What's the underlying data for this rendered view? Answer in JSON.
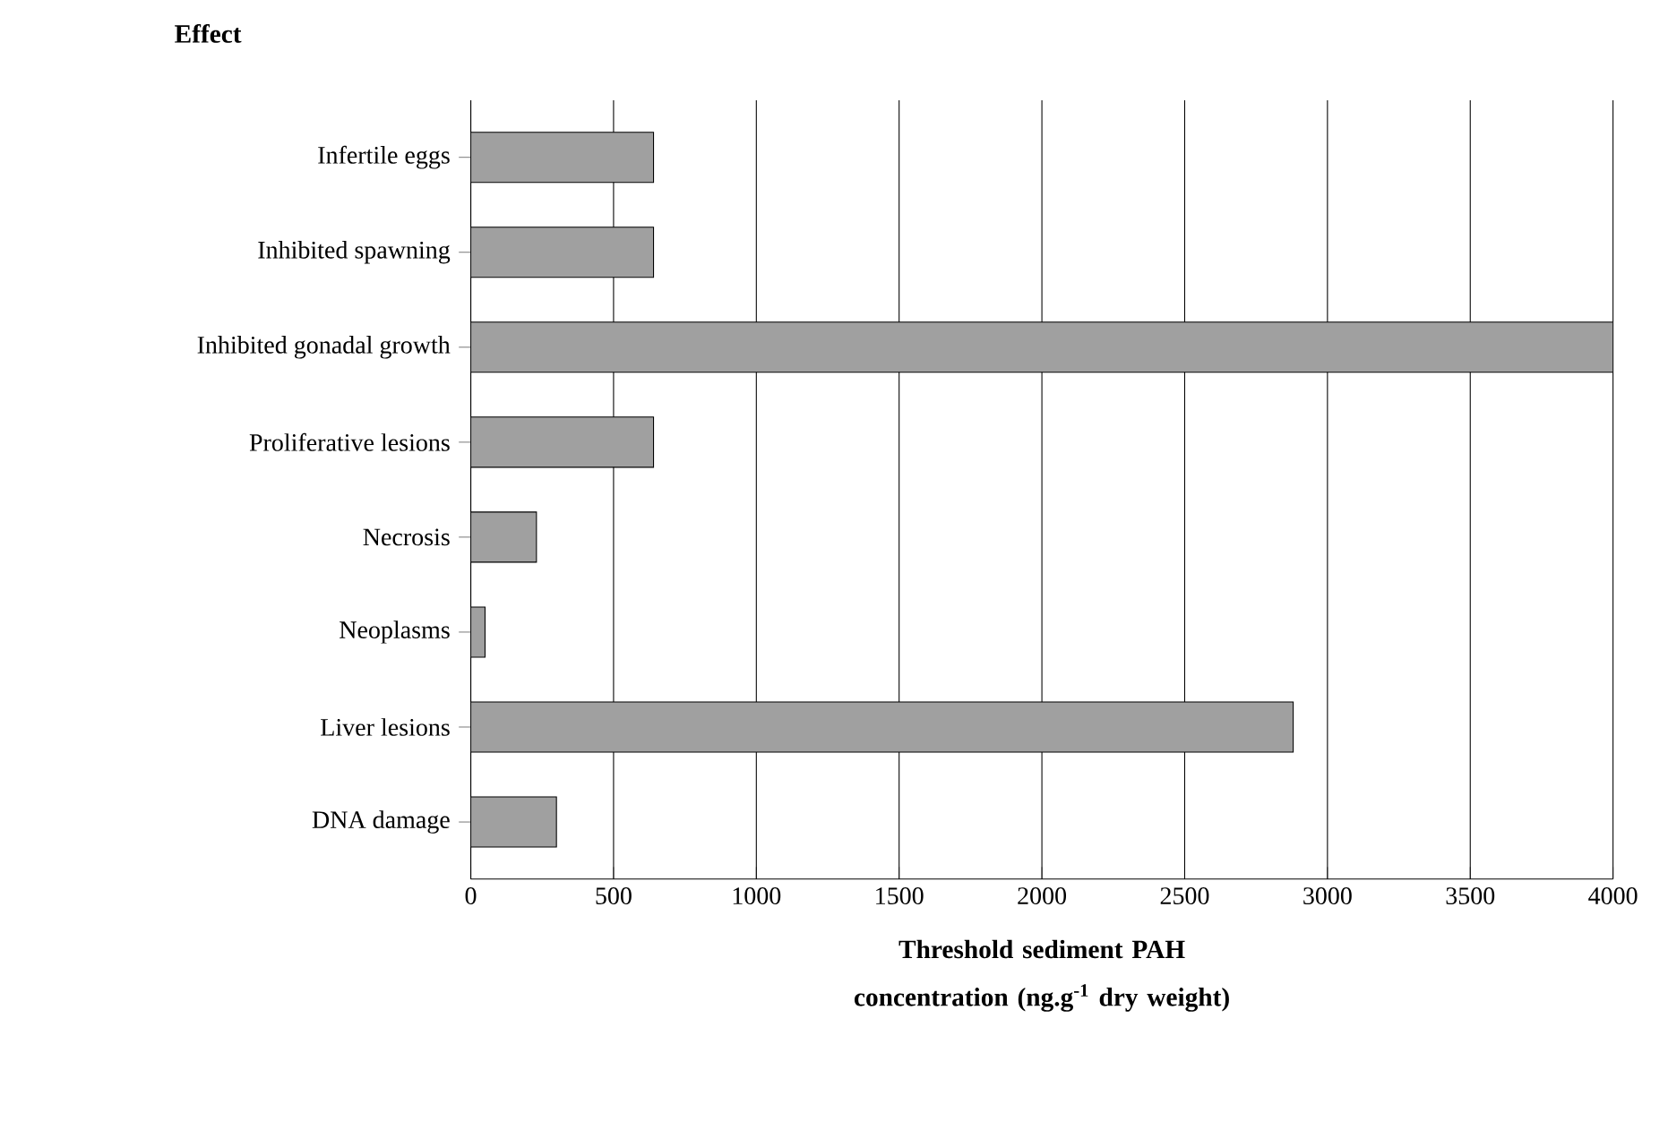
{
  "chart_data": {
    "type": "bar",
    "orientation": "horizontal",
    "ylabel": "Effect",
    "xlabel": "Threshold sediment PAH concentration (ng.g$^{-1}$ dry weight)",
    "categories": [
      "Infertile eggs",
      "Inhibited spawning",
      "Inhibited gonadal growth",
      "Proliferative lesions",
      "Necrosis",
      "Neoplasms",
      "Liver lesions",
      "DNA damage"
    ],
    "values": [
      640,
      640,
      4000,
      640,
      230,
      50,
      2880,
      300
    ],
    "color": "#a0a0a0",
    "xlim": [
      0,
      4000
    ],
    "xticks": [
      0,
      500,
      1000,
      1500,
      2000,
      2500,
      3000,
      3500,
      4000
    ],
    "grid": "x"
  }
}
